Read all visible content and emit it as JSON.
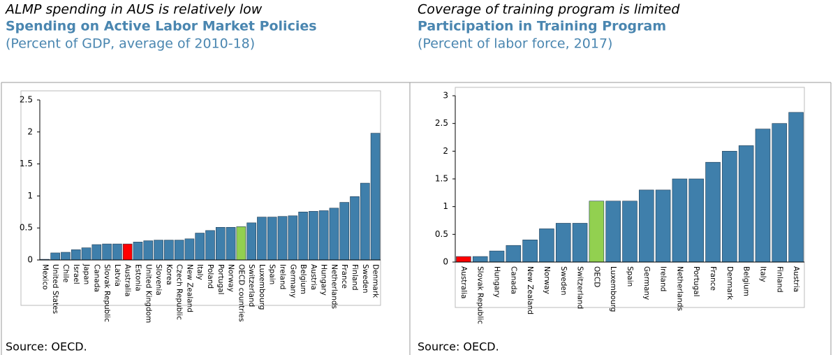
{
  "chart_data": [
    {
      "type": "bar",
      "headline": "ALMP spending in AUS is relatively low",
      "title": "Spending on Active Labor Market Policies",
      "subtitle": "(Percent of GDP, average of 2010-18)",
      "source": "Source: OECD.",
      "categories": [
        "Mexico",
        "United States",
        "Chile",
        "Israel",
        "Japan",
        "Canada",
        "Slovak Republic",
        "Latvia",
        "Australia",
        "Estonia",
        "United Kingdom",
        "Slovenia",
        "Korea",
        "Czech Republic",
        "New Zealand",
        "Italy",
        "Poland",
        "Portugal",
        "Norway",
        "OECD countries",
        "Switzerland",
        "Luxembourg",
        "Spain",
        "Ireland",
        "Germany",
        "Belgium",
        "Austria",
        "Hungary",
        "Netherlands",
        "France",
        "Finland",
        "Sweden",
        "Denmark"
      ],
      "values": [
        0.01,
        0.11,
        0.12,
        0.16,
        0.19,
        0.24,
        0.25,
        0.25,
        0.25,
        0.28,
        0.3,
        0.31,
        0.31,
        0.31,
        0.33,
        0.42,
        0.46,
        0.51,
        0.51,
        0.52,
        0.58,
        0.67,
        0.67,
        0.68,
        0.69,
        0.75,
        0.76,
        0.77,
        0.81,
        0.9,
        0.99,
        1.2,
        1.98
      ],
      "colors": [
        "#3f7fab",
        "#3f7fab",
        "#3f7fab",
        "#3f7fab",
        "#3f7fab",
        "#3f7fab",
        "#3f7fab",
        "#3f7fab",
        "#ff0000",
        "#3f7fab",
        "#3f7fab",
        "#3f7fab",
        "#3f7fab",
        "#3f7fab",
        "#3f7fab",
        "#3f7fab",
        "#3f7fab",
        "#3f7fab",
        "#3f7fab",
        "#92d050",
        "#3f7fab",
        "#3f7fab",
        "#3f7fab",
        "#3f7fab",
        "#3f7fab",
        "#3f7fab",
        "#3f7fab",
        "#3f7fab",
        "#3f7fab",
        "#3f7fab",
        "#3f7fab",
        "#3f7fab",
        "#3f7fab"
      ],
      "ylim": [
        0,
        2.5
      ],
      "yticks": [
        0,
        0.5,
        1,
        1.5,
        2,
        2.5
      ]
    },
    {
      "type": "bar",
      "headline": "Coverage of training program is limited",
      "title": "Participation in Training Program",
      "subtitle": "(Percent of labor force, 2017)",
      "source": "Source: OECD.",
      "categories": [
        "Australia",
        "Slovak Republic",
        "Hungary",
        "Canada",
        "New Zealand",
        "Norway",
        "Sweden",
        "Switzerland",
        "OECD",
        "Luxembourg",
        "Spain",
        "Germany",
        "Ireland",
        "Netherlands",
        "Portugal",
        "France",
        "Denmark",
        "Belgium",
        "Italy",
        "Finland",
        "Austria"
      ],
      "values": [
        0.1,
        0.1,
        0.2,
        0.3,
        0.4,
        0.6,
        0.7,
        0.7,
        1.1,
        1.1,
        1.1,
        1.3,
        1.3,
        1.5,
        1.5,
        1.8,
        2.0,
        2.1,
        2.4,
        2.5,
        2.7
      ],
      "colors": [
        "#ff0000",
        "#3f7fab",
        "#3f7fab",
        "#3f7fab",
        "#3f7fab",
        "#3f7fab",
        "#3f7fab",
        "#3f7fab",
        "#92d050",
        "#3f7fab",
        "#3f7fab",
        "#3f7fab",
        "#3f7fab",
        "#3f7fab",
        "#3f7fab",
        "#3f7fab",
        "#3f7fab",
        "#3f7fab",
        "#3f7fab",
        "#3f7fab",
        "#3f7fab"
      ],
      "ylim": [
        0,
        3
      ],
      "yticks": [
        0,
        0.5,
        1,
        1.5,
        2,
        2.5,
        3
      ]
    }
  ]
}
